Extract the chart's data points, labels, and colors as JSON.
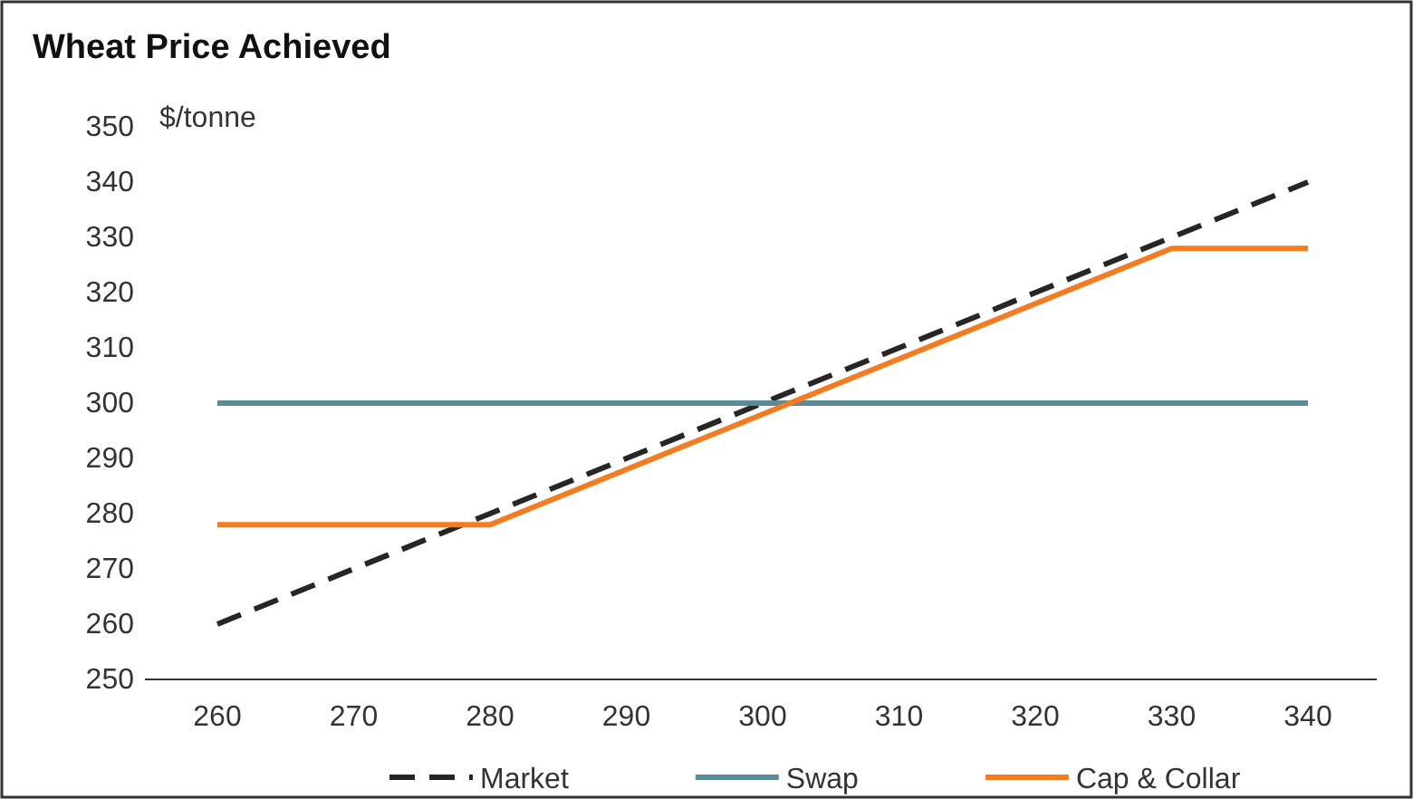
{
  "chart_data": {
    "type": "line",
    "title": "Wheat Price Achieved",
    "ylabel": "$/tonne",
    "categories": [
      "260",
      "270",
      "280",
      "290",
      "300",
      "310",
      "320",
      "330",
      "340"
    ],
    "series": [
      {
        "name": "Market",
        "color": "#262626",
        "line_style": "dashed",
        "values": [
          260,
          270,
          280,
          290,
          300,
          310,
          320,
          330,
          340
        ]
      },
      {
        "name": "Swap",
        "color": "#5b8a99",
        "line_style": "solid",
        "values": [
          300,
          300,
          300,
          300,
          300,
          300,
          300,
          300,
          300
        ]
      },
      {
        "name": "Cap & Collar",
        "color": "#f47b20",
        "line_style": "solid",
        "values": [
          278,
          278,
          278,
          288,
          298,
          308,
          318,
          328,
          328
        ]
      }
    ],
    "ylim": [
      250,
      350
    ],
    "yticks": [
      250,
      260,
      270,
      280,
      290,
      300,
      310,
      320,
      330,
      340,
      350
    ],
    "grid": false,
    "legend": "bottom",
    "marker": "none"
  }
}
